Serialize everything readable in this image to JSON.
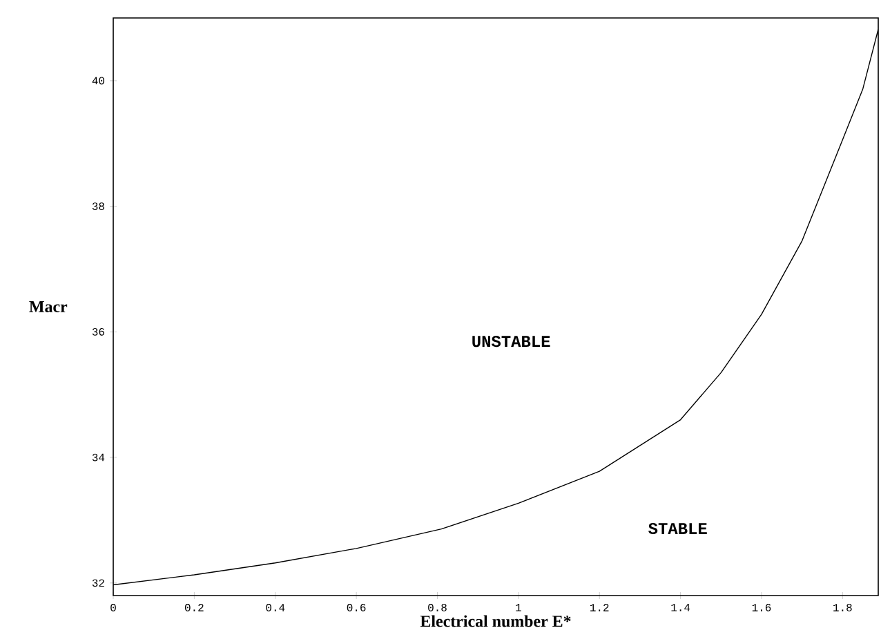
{
  "chart_data": {
    "type": "line",
    "xlabel": "Electrical number E*",
    "ylabel": "Macr",
    "x": [
      0,
      0.2,
      0.4,
      0.6,
      0.81,
      1,
      1.2,
      1.4,
      1.5,
      1.6,
      1.7,
      1.8,
      1.85,
      1.888
    ],
    "series": [
      {
        "color": "#000000",
        "values": [
          31.97,
          32.13,
          32.32,
          32.55,
          32.86,
          33.27,
          33.78,
          34.6,
          35.35,
          36.28,
          37.45,
          39.06,
          39.87,
          40.82
        ]
      }
    ],
    "xlim": [
      0,
      1.888
    ],
    "ylim": [
      31.8,
      41
    ],
    "xticks": [
      0,
      0.2,
      0.4,
      0.6,
      0.8,
      1,
      1.2,
      1.4,
      1.6,
      1.8
    ],
    "yticks": [
      32,
      34,
      36,
      38,
      40
    ],
    "annotations": [
      "UNSTABLE",
      "STABLE"
    ],
    "grid": false,
    "marker": "none",
    "line_style": "solid"
  }
}
